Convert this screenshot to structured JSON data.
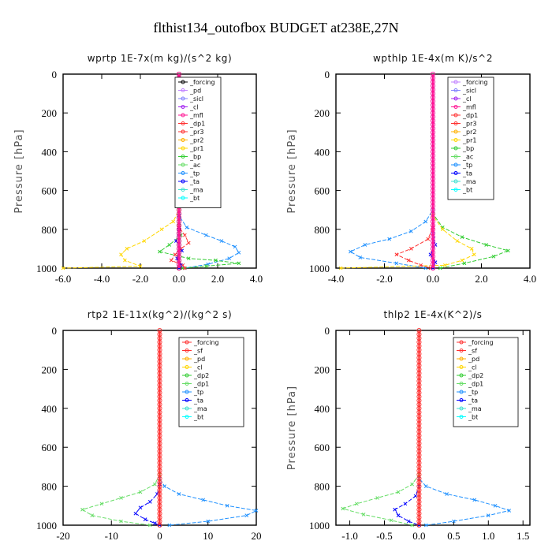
{
  "figure_title": "flthist134_outofbox  BUDGET at238E,27N",
  "colors": {
    "forcing": "#000000",
    "pd": "#c080ff",
    "sicl": "#8080ff",
    "cl": "#a020f0",
    "mfl": "#ff1493",
    "dp1": "#ff3030",
    "pr3": "#ff3030",
    "pr2": "#ffb000",
    "pr1": "#ffd700",
    "bp": "#32cd32",
    "ac": "#66dd66",
    "tp": "#1e90ff",
    "ta": "#0000ff",
    "ma": "#40e0d0",
    "bt": "#00ffff",
    "sf": "#ff3030",
    "dp2": "#32cd32",
    "red_forcing": "#ff3030"
  },
  "chart_data": [
    {
      "type": "line",
      "title": "wprtp   1E-7x(m kg)/(s^2 kg)",
      "ylabel": "Pressure [hPa]",
      "xlim": [
        -6,
        4
      ],
      "ylim": [
        1000,
        0
      ],
      "xticks": [
        "-6.0",
        "-4.0",
        "-2.0",
        "0.0",
        "2.0",
        "4.0"
      ],
      "yticks": [
        "0",
        "200",
        "400",
        "600",
        "800",
        "1000"
      ],
      "legend": [
        "_forcing",
        "_pd",
        "_sicl",
        "_cl",
        "_mfl",
        "_dp1",
        "_pr3",
        "_pr2",
        "_pr1",
        "_bp",
        "_ac",
        "_tp",
        "_ta",
        "_ma",
        "_bt"
      ],
      "legend_colors": [
        "forcing",
        "pd",
        "sicl",
        "cl",
        "mfl",
        "dp1",
        "pr3",
        "pr2",
        "pr1",
        "bp",
        "ac",
        "tp",
        "ta",
        "ma",
        "bt"
      ],
      "series": [
        {
          "color": "pr1",
          "x": [
            0,
            0,
            -0.3,
            -0.9,
            -1.8,
            -2.7,
            -3.0,
            -2.8,
            -2.0,
            -6.0
          ],
          "y": [
            0,
            700,
            760,
            800,
            860,
            900,
            930,
            960,
            990,
            1000
          ]
        },
        {
          "color": "tp",
          "x": [
            0,
            0,
            0.4,
            1.4,
            2.2,
            2.9,
            3.1,
            2.6,
            1.5,
            0.3
          ],
          "y": [
            0,
            730,
            790,
            830,
            860,
            890,
            920,
            950,
            980,
            1000
          ]
        },
        {
          "color": "bp",
          "x": [
            0,
            0,
            0.1,
            -0.5,
            -1.0,
            0.5,
            1.9,
            3.1,
            1.4,
            0.2
          ],
          "y": [
            0,
            780,
            830,
            880,
            915,
            950,
            960,
            975,
            990,
            1000
          ]
        },
        {
          "color": "dp1",
          "x": [
            0,
            0,
            0.3,
            0.5,
            0.1,
            -0.2,
            -0.4,
            0.2,
            0.3
          ],
          "y": [
            0,
            790,
            830,
            870,
            900,
            930,
            960,
            985,
            1000
          ]
        },
        {
          "color": "ta",
          "x": [
            0,
            0,
            -0.15,
            0.15,
            -0.1,
            0.1,
            0
          ],
          "y": [
            0,
            800,
            860,
            910,
            950,
            985,
            1000
          ]
        }
      ],
      "flat_series": [
        "forcing",
        "mfl"
      ]
    },
    {
      "type": "line",
      "title": "wpthlp   1E-4x(m K)/s^2",
      "ylabel": "Pressure [hPa]",
      "xlim": [
        -4,
        4
      ],
      "ylim": [
        1000,
        0
      ],
      "xticks": [
        "-4.0",
        "-2.0",
        "0.0",
        "2.0",
        "4.0"
      ],
      "yticks": [
        "0",
        "200",
        "400",
        "600",
        "800",
        "1000"
      ],
      "legend": [
        "_forcing",
        "_sicl",
        "_cl",
        "_mfl",
        "_dp1",
        "_pr3",
        "_pr2",
        "_pr1",
        "_bp",
        "_ac",
        "_tp",
        "_ta",
        "_ma",
        "_bt"
      ],
      "legend_colors": [
        "pd",
        "sicl",
        "cl",
        "mfl",
        "dp1",
        "pr3",
        "pr2",
        "pr1",
        "bp",
        "ac",
        "tp",
        "ta",
        "ma",
        "bt"
      ],
      "series": [
        {
          "color": "tp",
          "x": [
            0,
            0,
            -0.3,
            -0.9,
            -1.8,
            -2.8,
            -3.4,
            -3.0,
            -1.5,
            -0.3
          ],
          "y": [
            0,
            700,
            760,
            810,
            850,
            880,
            915,
            945,
            975,
            1000
          ]
        },
        {
          "color": "bp",
          "x": [
            0,
            0,
            0.4,
            1.2,
            2.2,
            3.1,
            2.5,
            1.3,
            0.3
          ],
          "y": [
            0,
            720,
            790,
            840,
            880,
            910,
            940,
            975,
            1000
          ]
        },
        {
          "color": "pr1",
          "x": [
            0,
            0,
            0.4,
            1.0,
            1.6,
            1.7,
            1.2,
            0.5,
            -3.8
          ],
          "y": [
            0,
            730,
            800,
            860,
            900,
            930,
            960,
            985,
            1000
          ]
        },
        {
          "color": "dp1",
          "x": [
            0,
            0,
            -0.2,
            -0.9,
            -1.5,
            -1.0,
            -0.5,
            -0.1
          ],
          "y": [
            0,
            790,
            850,
            900,
            930,
            960,
            985,
            1000
          ]
        },
        {
          "color": "ta",
          "x": [
            0,
            0,
            0.1,
            -0.1,
            0.1,
            0
          ],
          "y": [
            0,
            820,
            880,
            930,
            970,
            1000
          ]
        }
      ],
      "flat_series": [
        "pd",
        "mfl"
      ]
    },
    {
      "type": "line",
      "title": "rtp2   1E-11x(kg^2)/(kg^2 s)",
      "ylabel": "",
      "xlim": [
        -20,
        20
      ],
      "ylim": [
        1000,
        0
      ],
      "xticks": [
        "-20",
        "-10",
        "0",
        "10",
        "20"
      ],
      "yticks": [
        "0",
        "200",
        "400",
        "600",
        "800",
        "1000"
      ],
      "legend": [
        "_forcing",
        "_sf",
        "_pd",
        "_cl",
        "_dp2",
        "_dp1",
        "_tp",
        "_ta",
        "_ma",
        "_bt"
      ],
      "legend_colors": [
        "red_forcing",
        "sf",
        "pr2",
        "pr1",
        "dp2",
        "ac",
        "tp",
        "ta",
        "ma",
        "bt"
      ],
      "series": [
        {
          "color": "ac",
          "x": [
            0,
            0,
            -1,
            -4,
            -8,
            -12,
            -16,
            -14,
            -8,
            -2
          ],
          "y": [
            0,
            740,
            790,
            830,
            860,
            890,
            920,
            950,
            980,
            1000
          ]
        },
        {
          "color": "tp",
          "x": [
            0,
            0,
            1,
            4,
            9,
            14,
            20,
            18,
            10,
            2
          ],
          "y": [
            0,
            760,
            800,
            840,
            870,
            900,
            925,
            950,
            980,
            1000
          ]
        },
        {
          "color": "ta",
          "x": [
            0,
            0,
            -0.5,
            -2,
            -4,
            -5,
            -3,
            -1,
            0
          ],
          "y": [
            0,
            790,
            840,
            880,
            910,
            940,
            970,
            990,
            1000
          ]
        }
      ],
      "flat_series": [
        "red_forcing"
      ]
    },
    {
      "type": "line",
      "title": "thlp2   1E-4x(K^2)/s",
      "ylabel": "Pressure [hPa]",
      "xlim": [
        -1.2,
        1.6
      ],
      "ylim": [
        1000,
        0
      ],
      "xticks": [
        "-1.0",
        "-0.5",
        "0.0",
        "0.5",
        "1.0",
        "1.5"
      ],
      "yticks": [
        "0",
        "200",
        "400",
        "600",
        "800",
        "1000"
      ],
      "legend": [
        "_forcing",
        "_sf",
        "_pd",
        "_cl",
        "_dp2",
        "_dp1",
        "_tp",
        "_ta",
        "_ma",
        "_bt"
      ],
      "legend_colors": [
        "red_forcing",
        "sf",
        "pr2",
        "pr1",
        "dp2",
        "ac",
        "tp",
        "ta",
        "ma",
        "bt"
      ],
      "series": [
        {
          "color": "ac",
          "x": [
            0,
            0,
            -0.1,
            -0.3,
            -0.6,
            -0.9,
            -1.1,
            -0.8,
            -0.4,
            -0.1
          ],
          "y": [
            0,
            740,
            790,
            830,
            860,
            890,
            915,
            945,
            975,
            1000
          ]
        },
        {
          "color": "tp",
          "x": [
            0,
            0,
            0.1,
            0.4,
            0.8,
            1.1,
            1.3,
            1.0,
            0.5,
            0.1
          ],
          "y": [
            0,
            760,
            800,
            840,
            870,
            900,
            925,
            950,
            980,
            1000
          ]
        },
        {
          "color": "ta",
          "x": [
            0,
            0,
            -0.05,
            -0.2,
            -0.35,
            -0.3,
            -0.15,
            0
          ],
          "y": [
            0,
            800,
            850,
            890,
            920,
            950,
            980,
            1000
          ]
        }
      ],
      "flat_series": [
        "red_forcing"
      ]
    }
  ]
}
